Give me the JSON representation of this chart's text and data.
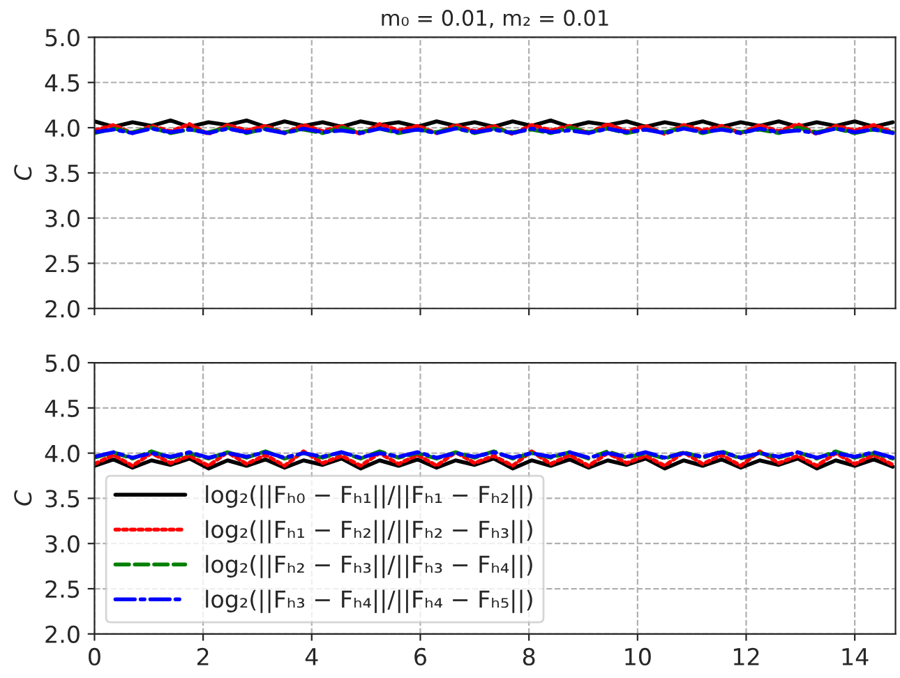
{
  "chart_data": [
    {
      "type": "line",
      "title": "m₀ = 0.01, m₂ = 0.01",
      "ylabel": "C",
      "xlim": [
        0,
        14.75
      ],
      "xticks": [
        0,
        2,
        4,
        6,
        8,
        10,
        12,
        14
      ],
      "ylim": [
        2.0,
        5.0
      ],
      "yticks": [
        {
          "value": 2.0,
          "label": "2.0"
        },
        2.5,
        {
          "value": 3.0,
          "label": "3.0"
        },
        3.5,
        {
          "value": 4.0,
          "label": "4.0"
        },
        4.5,
        {
          "value": 5.0,
          "label": "5.0"
        }
      ],
      "grid": true,
      "tick_labels": "y",
      "x": [
        0,
        0.35,
        0.7,
        1.05,
        1.4,
        1.75,
        2.1,
        2.45,
        2.8,
        3.15,
        3.5,
        3.85,
        4.2,
        4.55,
        4.9,
        5.25,
        5.6,
        5.95,
        6.3,
        6.65,
        7.0,
        7.35,
        7.7,
        8.05,
        8.4,
        8.75,
        9.1,
        9.45,
        9.8,
        10.15,
        10.5,
        10.85,
        11.2,
        11.55,
        11.9,
        12.25,
        12.6,
        12.95,
        13.3,
        13.65,
        14.0,
        14.35,
        14.7
      ],
      "series": [
        {
          "color": "#000000",
          "line_style": "solid",
          "values": [
            4.07,
            4.01,
            4.06,
            4.02,
            4.08,
            4.01,
            4.06,
            4.03,
            4.08,
            4.01,
            4.07,
            4.02,
            4.06,
            4.01,
            4.07,
            4.03,
            4.06,
            4.01,
            4.07,
            4.02,
            4.06,
            4.01,
            4.07,
            4.02,
            4.08,
            4.01,
            4.06,
            4.03,
            4.07,
            4.01,
            4.06,
            4.02,
            4.07,
            4.01,
            4.06,
            4.02,
            4.07,
            4.01,
            4.06,
            4.02,
            4.07,
            4.01,
            4.06
          ]
        },
        {
          "color": "#ff0000",
          "line_style": "dotted",
          "values": [
            3.97,
            4.03,
            3.94,
            4.02,
            3.96,
            4.04,
            3.93,
            4.03,
            3.97,
            4.02,
            3.94,
            4.03,
            3.96,
            4.02,
            3.93,
            4.04,
            3.97,
            4.02,
            3.94,
            4.03,
            3.96,
            4.02,
            3.93,
            4.03,
            3.97,
            4.02,
            3.94,
            4.04,
            3.96,
            4.02,
            3.93,
            4.03,
            3.97,
            4.02,
            3.94,
            4.03,
            3.96,
            4.04,
            3.93,
            4.02,
            3.97,
            4.03,
            3.95
          ]
        },
        {
          "color": "#008000",
          "line_style": "dashed",
          "values": [
            3.94,
            3.99,
            3.95,
            4.0,
            3.94,
            3.98,
            3.95,
            4.0,
            3.94,
            3.99,
            3.95,
            3.98,
            3.94,
            4.0,
            3.95,
            3.99,
            3.94,
            3.98,
            3.95,
            4.0,
            3.94,
            3.99,
            3.95,
            3.98,
            3.94,
            4.0,
            3.95,
            3.99,
            3.94,
            3.98,
            3.95,
            4.0,
            3.94,
            3.99,
            3.95,
            3.98,
            3.94,
            4.0,
            3.95,
            3.99,
            3.94,
            3.98,
            3.95
          ]
        },
        {
          "color": "#0000ff",
          "line_style": "dashdot",
          "values": [
            3.95,
            3.98,
            3.94,
            3.99,
            3.95,
            3.98,
            3.94,
            3.99,
            3.95,
            3.98,
            3.94,
            3.99,
            3.95,
            3.97,
            3.94,
            3.99,
            3.95,
            3.98,
            3.94,
            3.99,
            3.95,
            3.98,
            3.94,
            3.99,
            3.95,
            3.97,
            3.94,
            3.99,
            3.95,
            3.98,
            3.94,
            3.99,
            3.95,
            3.98,
            3.94,
            3.99,
            3.95,
            3.97,
            3.94,
            3.99,
            3.95,
            3.98,
            3.94
          ]
        }
      ]
    },
    {
      "type": "line",
      "ylabel": "C",
      "xlim": [
        0,
        14.75
      ],
      "xticks": [
        0,
        2,
        4,
        6,
        8,
        10,
        12,
        14
      ],
      "ylim": [
        2.0,
        5.0
      ],
      "yticks": [
        {
          "value": 2.0,
          "label": "2.0"
        },
        2.5,
        {
          "value": 3.0,
          "label": "3.0"
        },
        3.5,
        {
          "value": 4.0,
          "label": "4.0"
        },
        4.5,
        {
          "value": 5.0,
          "label": "5.0"
        }
      ],
      "grid": true,
      "legend": "bottom left",
      "x": [
        0,
        0.35,
        0.7,
        1.05,
        1.4,
        1.75,
        2.1,
        2.45,
        2.8,
        3.15,
        3.5,
        3.85,
        4.2,
        4.55,
        4.9,
        5.25,
        5.6,
        5.95,
        6.3,
        6.65,
        7.0,
        7.35,
        7.7,
        8.05,
        8.4,
        8.75,
        9.1,
        9.45,
        9.8,
        10.15,
        10.5,
        10.85,
        11.2,
        11.55,
        11.9,
        12.25,
        12.6,
        12.95,
        13.3,
        13.65,
        14.0,
        14.35,
        14.7
      ],
      "series": [
        {
          "name": "log₂(||Fₕ₀ − Fₕ₁||/||Fₕ₁ − Fₕ₂||)",
          "color": "#000000",
          "line_style": "solid",
          "values": [
            3.86,
            3.93,
            3.84,
            3.92,
            3.87,
            3.94,
            3.83,
            3.92,
            3.86,
            3.93,
            3.84,
            3.92,
            3.87,
            3.94,
            3.83,
            3.92,
            3.86,
            3.93,
            3.84,
            3.92,
            3.87,
            3.94,
            3.83,
            3.92,
            3.86,
            3.93,
            3.84,
            3.92,
            3.87,
            3.94,
            3.83,
            3.92,
            3.86,
            3.93,
            3.84,
            3.92,
            3.87,
            3.94,
            3.83,
            3.92,
            3.86,
            3.93,
            3.85
          ]
        },
        {
          "name": "log₂(||Fₕ₁ − Fₕ₂||/||Fₕ₂ − Fₕ₃||)",
          "color": "#ff0000",
          "line_style": "dotted",
          "values": [
            3.88,
            3.98,
            3.86,
            4.0,
            3.89,
            3.97,
            3.86,
            4.01,
            3.88,
            3.98,
            3.86,
            4.02,
            3.89,
            3.97,
            3.86,
            4.0,
            3.88,
            3.98,
            3.86,
            4.01,
            3.89,
            3.97,
            3.86,
            4.02,
            3.88,
            3.98,
            3.86,
            4.0,
            3.89,
            3.97,
            3.86,
            4.01,
            3.88,
            3.98,
            3.86,
            4.02,
            3.89,
            3.97,
            3.86,
            4.0,
            3.88,
            3.98,
            3.87
          ]
        },
        {
          "name": "log₂(||Fₕ₂ − Fₕ₃||/||Fₕ₃ − Fₕ₄||)",
          "color": "#008000",
          "line_style": "dashed",
          "values": [
            3.95,
            4.01,
            3.94,
            4.02,
            3.95,
            4.0,
            3.94,
            4.01,
            3.95,
            4.02,
            3.94,
            4.0,
            3.95,
            4.01,
            3.94,
            4.02,
            3.95,
            4.0,
            3.94,
            4.01,
            3.95,
            4.02,
            3.94,
            4.0,
            3.95,
            4.01,
            3.94,
            4.02,
            3.95,
            4.0,
            3.94,
            4.01,
            3.95,
            4.02,
            3.94,
            4.0,
            3.95,
            4.01,
            3.94,
            4.02,
            3.95,
            4.0,
            3.94
          ]
        },
        {
          "name": "log₂(||Fₕ₃ − Fₕ₄||/||Fₕ₄ − Fₕ₅||)",
          "color": "#0000ff",
          "line_style": "dashdot",
          "values": [
            3.96,
            4.01,
            3.95,
            4.0,
            3.96,
            4.01,
            3.95,
            4.0,
            3.96,
            4.01,
            3.95,
            4.0,
            3.96,
            4.01,
            3.95,
            4.0,
            3.96,
            4.01,
            3.95,
            4.0,
            3.96,
            4.01,
            3.95,
            4.0,
            3.96,
            4.01,
            3.95,
            4.0,
            3.96,
            4.01,
            3.95,
            4.0,
            3.96,
            4.01,
            3.95,
            4.0,
            3.96,
            4.01,
            3.95,
            4.0,
            3.96,
            4.01,
            3.95
          ]
        }
      ]
    }
  ]
}
